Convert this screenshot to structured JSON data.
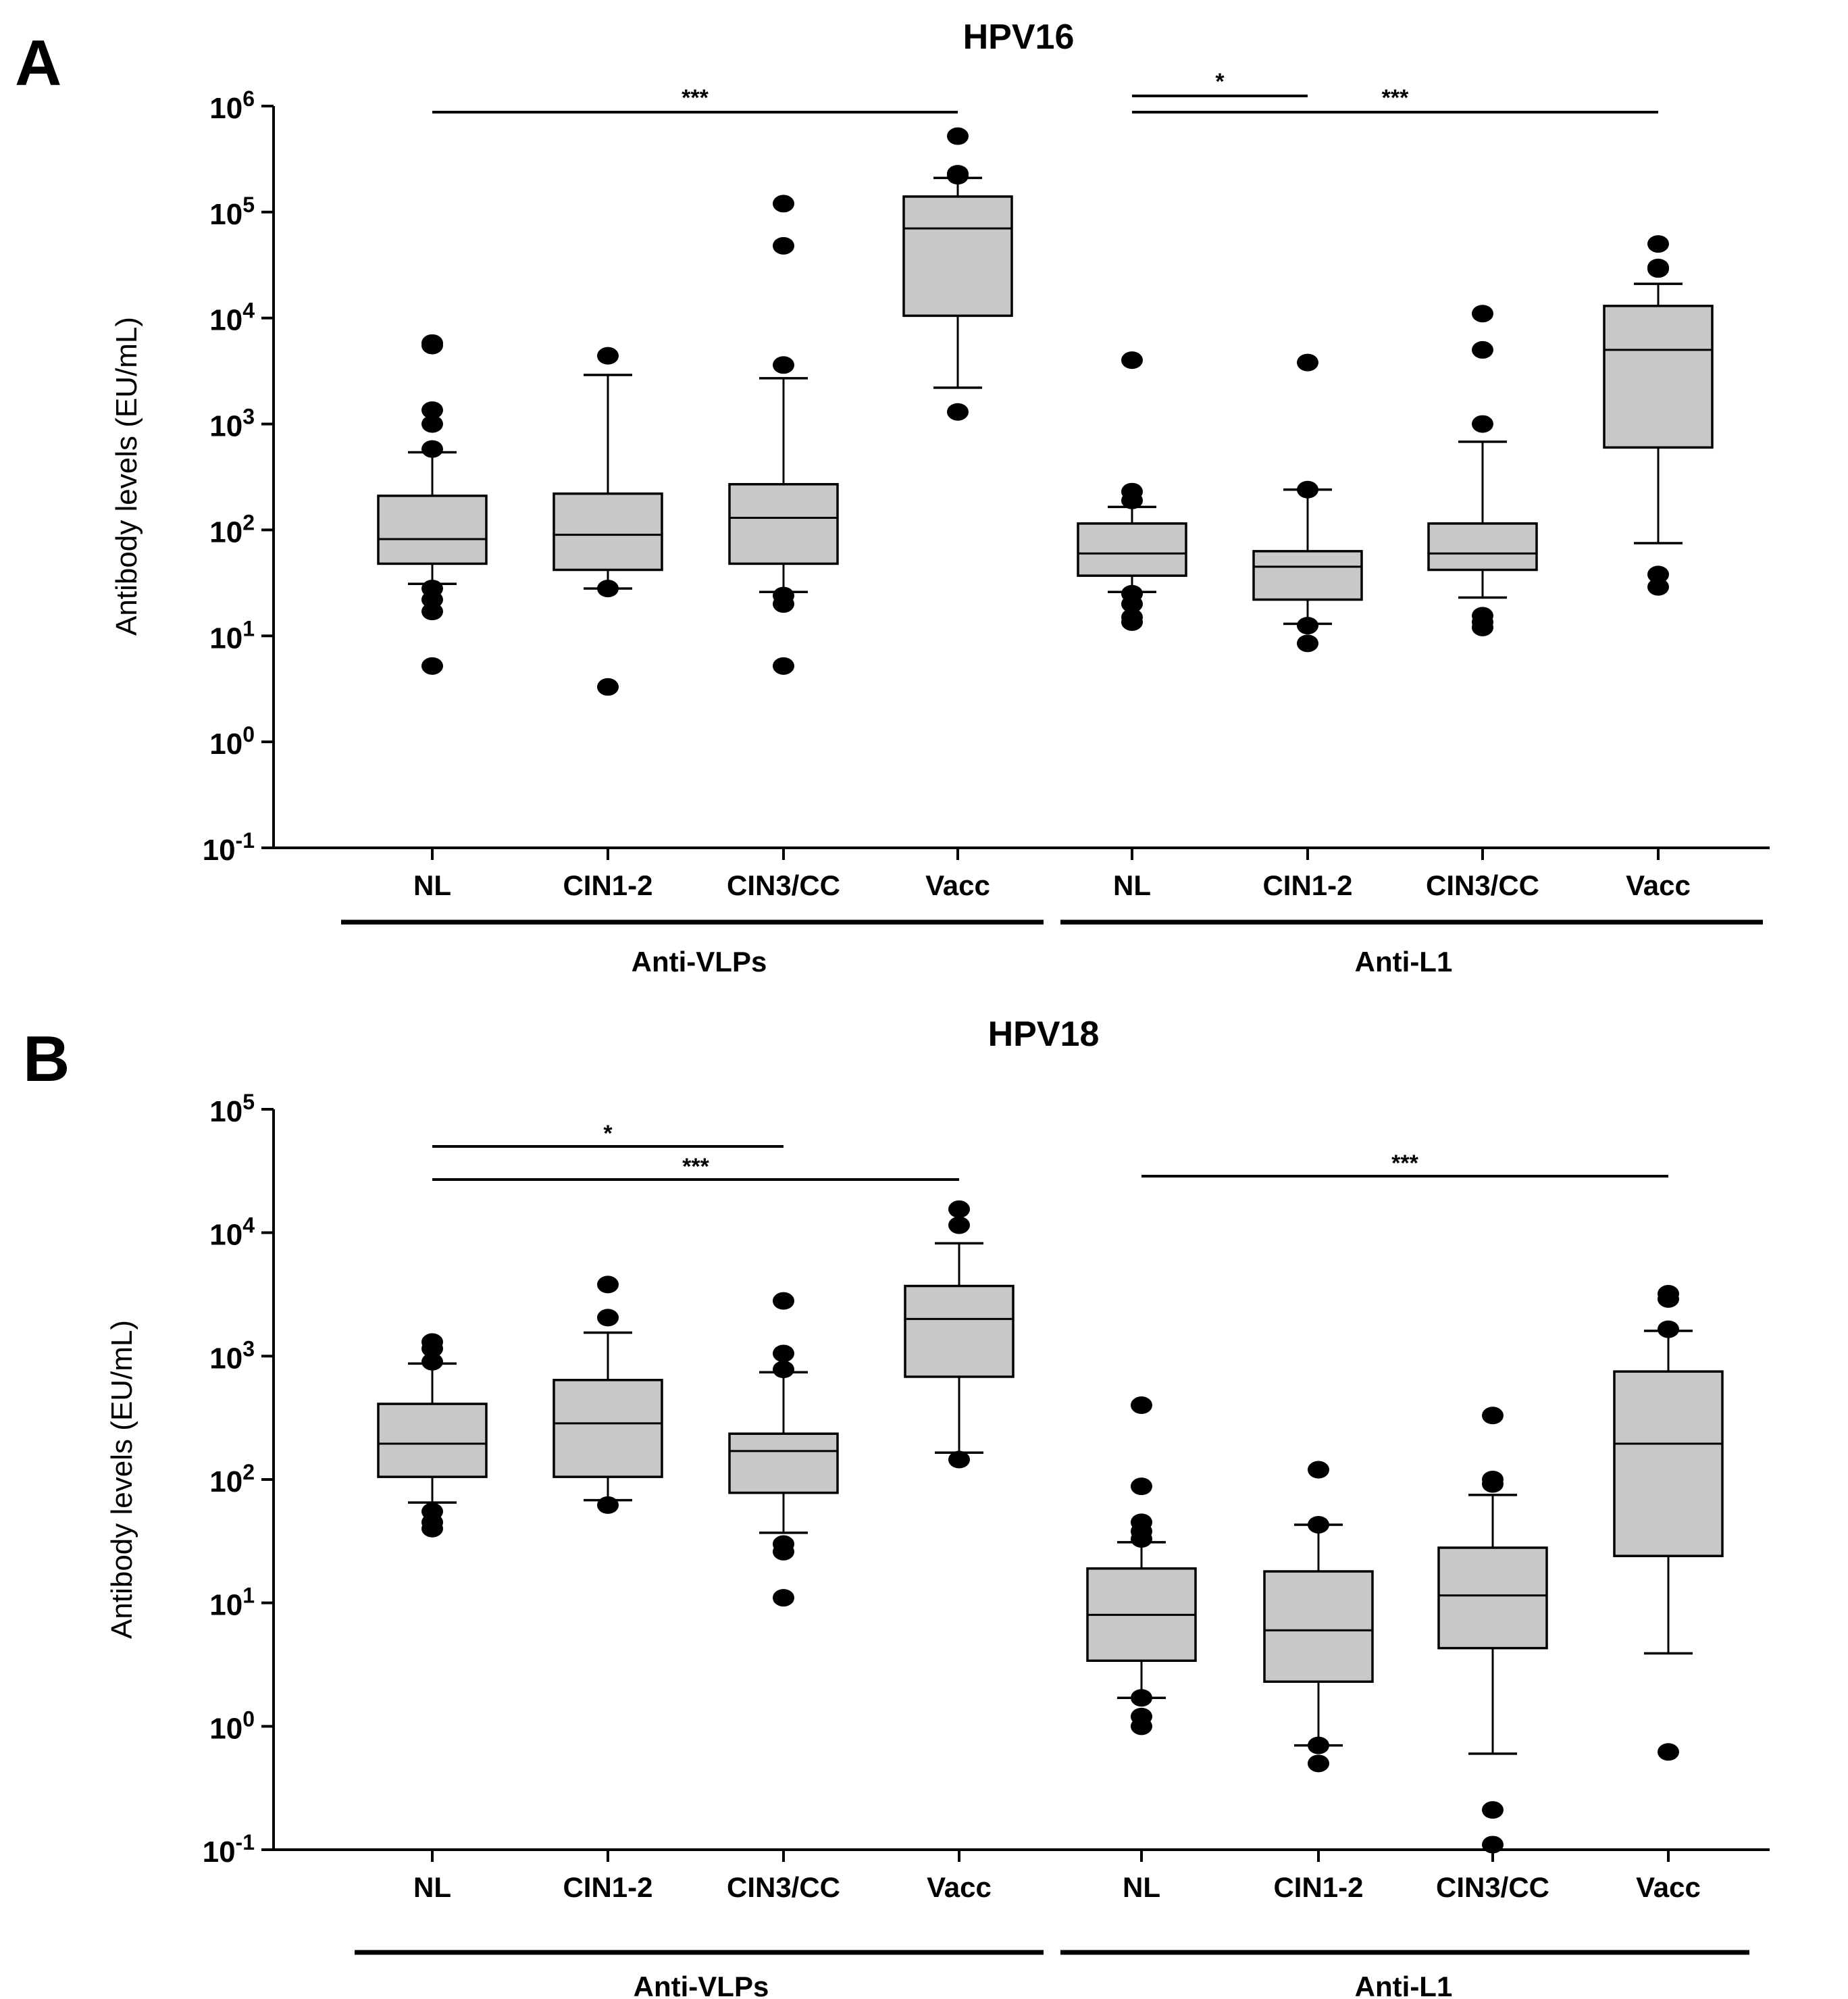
{
  "chart_data": [
    {
      "type": "boxplot",
      "panel_label": "A",
      "title": "HPV16",
      "ylabel": "Antibody levels (EU/mL)",
      "yscale": "log10",
      "ylim": [
        0.1,
        1000000
      ],
      "y_tick_exponents": [
        "6",
        "5",
        "4",
        "3",
        "2",
        "1",
        "0",
        "-1"
      ],
      "y_tick_base": "10",
      "groups": [
        {
          "label": "Anti-VLPs",
          "categories": [
            "NL",
            "CIN1-2",
            "CIN3/CC",
            "Vacc"
          ]
        },
        {
          "label": "Anti-L1",
          "categories": [
            "NL",
            "CIN1-2",
            "CIN3/CC",
            "Vacc"
          ]
        }
      ],
      "boxes": [
        {
          "group": "Anti-VLPs",
          "category": "NL",
          "whisker_low": 31,
          "q1": 48,
          "median": 82,
          "q3": 210,
          "whisker_high": 540,
          "outliers": [
            5800,
            5500,
            1350,
            1000,
            580,
            28,
            22,
            17,
            5.2
          ]
        },
        {
          "group": "Anti-VLPs",
          "category": "CIN1-2",
          "whisker_low": 28,
          "q1": 42,
          "median": 90,
          "q3": 220,
          "whisker_high": 2900,
          "outliers": [
            4400,
            28,
            3.3
          ]
        },
        {
          "group": "Anti-VLPs",
          "category": "CIN3/CC",
          "whisker_low": 26,
          "q1": 48,
          "median": 130,
          "q3": 270,
          "whisker_high": 2700,
          "outliers": [
            120000,
            48000,
            3600,
            24,
            20,
            5.2
          ]
        },
        {
          "group": "Anti-VLPs",
          "category": "Vacc",
          "whisker_low": 2200,
          "q1": 10500,
          "median": 70000,
          "q3": 140000,
          "whisker_high": 210000,
          "outliers": [
            520000,
            230000,
            220000,
            1300
          ]
        },
        {
          "group": "Anti-L1",
          "category": "NL",
          "whisker_low": 26,
          "q1": 37,
          "median": 60,
          "q3": 115,
          "whisker_high": 165,
          "outliers": [
            4000,
            230,
            190,
            25,
            20,
            15,
            13.5
          ]
        },
        {
          "group": "Anti-L1",
          "category": "CIN1-2",
          "whisker_low": 13,
          "q1": 22,
          "median": 45,
          "q3": 63,
          "whisker_high": 240,
          "outliers": [
            3800,
            240,
            12.5,
            8.5
          ]
        },
        {
          "group": "Anti-L1",
          "category": "CIN3/CC",
          "whisker_low": 23,
          "q1": 42,
          "median": 60,
          "q3": 115,
          "whisker_high": 680,
          "outliers": [
            11000,
            5000,
            1000,
            15.5,
            13.5,
            12
          ]
        },
        {
          "group": "Anti-L1",
          "category": "Vacc",
          "whisker_low": 75,
          "q1": 600,
          "median": 5000,
          "q3": 13000,
          "whisker_high": 21000,
          "outliers": [
            50000,
            30000,
            29000,
            38,
            29
          ]
        }
      ],
      "significance": [
        {
          "from": 0,
          "to": 3,
          "label": "***"
        },
        {
          "from": 4,
          "to": 5,
          "label": "*"
        },
        {
          "from": 4,
          "to": 7,
          "label": "***"
        }
      ]
    },
    {
      "type": "boxplot",
      "panel_label": "B",
      "title": "HPV18",
      "ylabel": "Antibody levels (EU/mL)",
      "yscale": "log10",
      "ylim": [
        0.1,
        100000
      ],
      "y_tick_exponents": [
        "5",
        "4",
        "3",
        "2",
        "1",
        "0",
        "-1"
      ],
      "y_tick_base": "10",
      "groups": [
        {
          "label": "Anti-VLPs",
          "categories": [
            "NL",
            "CIN1-2",
            "CIN3/CC",
            "Vacc"
          ]
        },
        {
          "label": "Anti-L1",
          "categories": [
            "NL",
            "CIN1-2",
            "CIN3/CC",
            "Vacc"
          ]
        }
      ],
      "boxes": [
        {
          "group": "Anti-VLPs",
          "category": "NL",
          "whisker_low": 65,
          "q1": 105,
          "median": 195,
          "q3": 410,
          "whisker_high": 870,
          "outliers": [
            1300,
            1150,
            900,
            55,
            45,
            40
          ]
        },
        {
          "group": "Anti-VLPs",
          "category": "CIN1-2",
          "whisker_low": 68,
          "q1": 105,
          "median": 285,
          "q3": 640,
          "whisker_high": 1550,
          "outliers": [
            3800,
            2050,
            62
          ]
        },
        {
          "group": "Anti-VLPs",
          "category": "CIN3/CC",
          "whisker_low": 37,
          "q1": 78,
          "median": 170,
          "q3": 235,
          "whisker_high": 740,
          "outliers": [
            2800,
            1050,
            780,
            30,
            26,
            11
          ]
        },
        {
          "group": "Anti-VLPs",
          "category": "Vacc",
          "whisker_low": 165,
          "q1": 680,
          "median": 2000,
          "q3": 3700,
          "whisker_high": 8200,
          "outliers": [
            15500,
            11500,
            145
          ]
        },
        {
          "group": "Anti-L1",
          "category": "NL",
          "whisker_low": 1.7,
          "q1": 3.4,
          "median": 8,
          "q3": 19,
          "whisker_high": 31,
          "outliers": [
            400,
            88,
            45,
            38,
            33,
            1.7,
            1.2,
            1.0
          ]
        },
        {
          "group": "Anti-L1",
          "category": "CIN1-2",
          "whisker_low": 0.7,
          "q1": 2.3,
          "median": 6,
          "q3": 18,
          "whisker_high": 43,
          "outliers": [
            120,
            43,
            0.7,
            0.5
          ]
        },
        {
          "group": "Anti-L1",
          "category": "CIN3/CC",
          "whisker_low": 0.6,
          "q1": 4.3,
          "median": 11.5,
          "q3": 28,
          "whisker_high": 75,
          "outliers": [
            330,
            100,
            92,
            0.21,
            0.11
          ]
        },
        {
          "group": "Anti-L1",
          "category": "Vacc",
          "whisker_low": 3.9,
          "q1": 24,
          "median": 195,
          "q3": 750,
          "whisker_high": 1600,
          "outliers": [
            3200,
            2900,
            1650,
            0.62
          ]
        }
      ],
      "significance": [
        {
          "from": 0,
          "to": 2,
          "label": "*"
        },
        {
          "from": 0,
          "to": 3,
          "label": "***"
        },
        {
          "from": 4,
          "to": 7,
          "label": "***"
        }
      ]
    }
  ]
}
